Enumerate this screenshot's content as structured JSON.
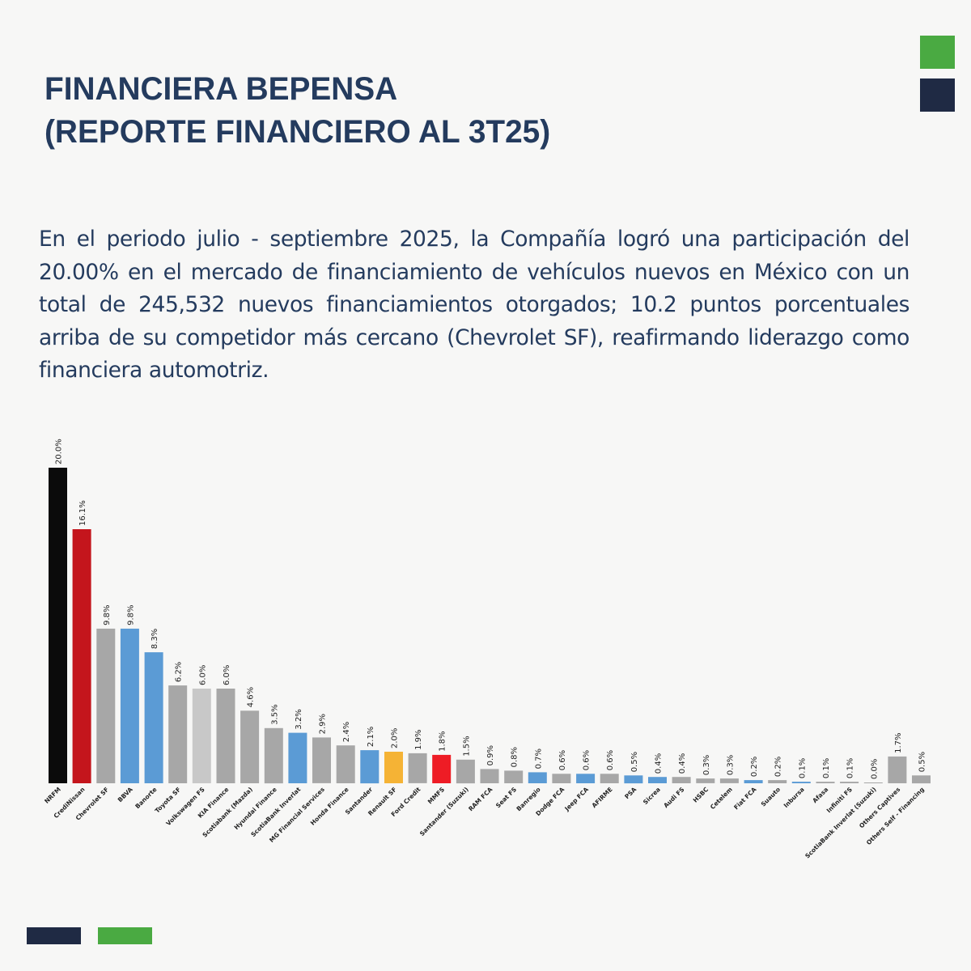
{
  "header": {
    "title_line1": "FINANCIERA BEPENSA",
    "title_line2": "(REPORTE FINANCIERO AL 3T25)"
  },
  "body": {
    "paragraph": "En el periodo julio - septiembre 2025, la Compañía logró una participación del 20.00% en el mercado de financiamiento de vehículos nuevos en México con un total de 245,532 nuevos financiamientos otorgados; 10.2 puntos porcentuales arriba de su competidor más cercano (Chevrolet SF), reafirmando liderazgo como financiera automotriz."
  },
  "decorations": {
    "top_right_colors": [
      "#4aaa42",
      "#1f2a44"
    ],
    "bottom_left_colors": [
      "#1f2a44",
      "#4aaa42"
    ]
  },
  "chart_data": {
    "type": "bar",
    "title": "",
    "xlabel": "",
    "ylabel": "",
    "ylim": [
      0,
      20
    ],
    "grid": false,
    "categories": [
      "NRFM",
      "CrediNissan",
      "Chevrolet SF",
      "BBVA",
      "Banorte",
      "Toyota SF",
      "Volkswagen FS",
      "KIA Finance",
      "Scotiabank (Mazda)",
      "Hyundai Finance",
      "ScotiaBank Inverlat",
      "MG Financial Services",
      "Honda Finance",
      "Santander",
      "Renault SF",
      "Ford Credit",
      "MMFS",
      "Santander (Suzuki)",
      "RAM FCA",
      "Seat FS",
      "Banregio",
      "Dodge FCA",
      "Jeep FCA",
      "AFIRME",
      "PSA",
      "Sicrea",
      "Audi FS",
      "HSBC",
      "Cetelem",
      "Fiat FCA",
      "Suauto",
      "Inbursa",
      "Afasa",
      "Infiniti FS",
      "ScotiaBank Inverlat (Suzuki)",
      "Others  Captives",
      "Others  Self - Financing"
    ],
    "values": [
      20.0,
      16.1,
      9.8,
      9.8,
      8.3,
      6.2,
      6.0,
      6.0,
      4.6,
      3.5,
      3.2,
      2.9,
      2.4,
      2.1,
      2.0,
      1.9,
      1.8,
      1.5,
      0.9,
      0.8,
      0.7,
      0.6,
      0.6,
      0.6,
      0.5,
      0.4,
      0.4,
      0.3,
      0.3,
      0.2,
      0.2,
      0.1,
      0.1,
      0.1,
      0.0,
      1.7,
      0.5
    ],
    "value_labels": [
      "20.0%",
      "16.1%",
      "9.8%",
      "9.8%",
      "8.3%",
      "6.2%",
      "6.0%",
      "6.0%",
      "4.6%",
      "3.5%",
      "3.2%",
      "2.9%",
      "2.4%",
      "2.1%",
      "2.0%",
      "1.9%",
      "1.8%",
      "1.5%",
      "0.9%",
      "0.8%",
      "0.7%",
      "0.6%",
      "0.6%",
      "0.6%",
      "0.5%",
      "0.4%",
      "0.4%",
      "0.3%",
      "0.3%",
      "0.2%",
      "0.2%",
      "0.1%",
      "0.1%",
      "0.1%",
      "0.0%",
      "1.7%",
      "0.5%"
    ],
    "colors": [
      "#0b0b0b",
      "#c4151c",
      "#a7a7a7",
      "#5b9bd5",
      "#5b9bd5",
      "#a7a7a7",
      "#c8c8c8",
      "#a7a7a7",
      "#a7a7a7",
      "#a7a7a7",
      "#5b9bd5",
      "#a7a7a7",
      "#a7a7a7",
      "#5b9bd5",
      "#f5b335",
      "#a7a7a7",
      "#ee1c25",
      "#a7a7a7",
      "#a7a7a7",
      "#a7a7a7",
      "#5b9bd5",
      "#a7a7a7",
      "#5b9bd5",
      "#a7a7a7",
      "#5b9bd5",
      "#5b9bd5",
      "#a7a7a7",
      "#a7a7a7",
      "#a7a7a7",
      "#5b9bd5",
      "#a7a7a7",
      "#5b9bd5",
      "#a7a7a7",
      "#a7a7a7",
      "#a7a7a7",
      "#a7a7a7",
      "#a7a7a7"
    ]
  }
}
